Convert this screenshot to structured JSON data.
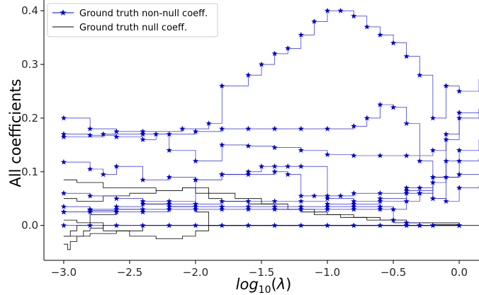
{
  "chart_data": {
    "type": "line",
    "xlabel": "log10(λ)",
    "ylabel": "All coefficients",
    "xlim": [
      -3.15,
      0.15
    ],
    "ylim": [
      -0.065,
      0.42
    ],
    "xticks": [
      -3.0,
      -2.5,
      -2.0,
      -1.5,
      -1.0,
      -0.5,
      0.0
    ],
    "xtick_labels": [
      "−3.0",
      "−2.5",
      "−2.0",
      "−1.5",
      "−1.0",
      "−0.5",
      "0.0"
    ],
    "yticks": [
      0.0,
      0.1,
      0.2,
      0.3,
      0.4
    ],
    "ytick_labels": [
      "0.0",
      "0.1",
      "0.2",
      "0.3",
      "0.4"
    ],
    "grid": false,
    "legend_position": "top-left",
    "legend": [
      {
        "label": "Ground truth non-null coeff.",
        "color": "#0000cc",
        "marker": "star"
      },
      {
        "label": "Ground truth null coeff.",
        "color": "#000000",
        "marker": "none"
      }
    ],
    "nonnull_color": "#0000cc",
    "null_color": "#000000",
    "nonnull_series": [
      {
        "x": [
          -3.0,
          -2.7,
          -2.4,
          -2.1,
          -1.9,
          -1.8,
          -1.6,
          -1.5,
          -1.4,
          -1.3,
          -1.2,
          -1.1,
          -1.0,
          -0.9,
          -0.8,
          -0.7,
          -0.6,
          -0.5,
          -0.4,
          -0.3,
          -0.2,
          -0.1,
          0.0,
          0.15
        ],
        "y": [
          0.165,
          0.17,
          0.175,
          0.18,
          0.19,
          0.26,
          0.28,
          0.3,
          0.32,
          0.33,
          0.355,
          0.38,
          0.4,
          0.4,
          0.39,
          0.37,
          0.355,
          0.34,
          0.315,
          0.28,
          0.2,
          0.26,
          0.25,
          0.273
        ]
      },
      {
        "x": [
          -3.0,
          -2.8,
          -2.6,
          -2.4,
          -2.2,
          -2.0,
          -1.8,
          -1.6,
          -1.4,
          -1.2,
          -1.0,
          -0.8,
          -0.7,
          -0.6,
          -0.5,
          -0.4,
          -0.3,
          -0.2,
          -0.1,
          0.0,
          0.15
        ],
        "y": [
          0.2,
          0.18,
          0.175,
          0.17,
          0.17,
          0.175,
          0.18,
          0.18,
          0.18,
          0.18,
          0.18,
          0.185,
          0.2,
          0.225,
          0.22,
          0.19,
          0.12,
          0.05,
          0.16,
          0.21,
          0.218
        ]
      },
      {
        "x": [
          -3.0,
          -2.8,
          -2.6,
          -2.4,
          -2.3,
          -2.2,
          -2.0,
          -1.8,
          -1.6,
          -1.4,
          -1.2,
          -1.0,
          -0.8,
          -0.6,
          -0.4,
          -0.2,
          -0.1,
          0.0,
          0.15
        ],
        "y": [
          0.17,
          0.168,
          0.165,
          0.16,
          0.17,
          0.14,
          0.12,
          0.15,
          0.148,
          0.145,
          0.14,
          0.132,
          0.13,
          0.13,
          0.13,
          0.14,
          0.17,
          0.2,
          0.215
        ]
      },
      {
        "x": [
          -3.0,
          -2.8,
          -2.7,
          -2.6,
          -2.4,
          -2.2,
          -2.0,
          -1.8,
          -1.6,
          -1.5,
          -1.4,
          -1.3,
          -1.2,
          -1.0,
          -0.8,
          -0.6,
          -0.4,
          -0.2,
          0.0,
          0.15
        ],
        "y": [
          0.118,
          0.105,
          0.095,
          0.11,
          0.085,
          0.09,
          0.085,
          0.095,
          0.1,
          0.11,
          0.11,
          0.11,
          0.11,
          0.05,
          0.045,
          0.05,
          0.065,
          0.09,
          0.12,
          0.125
        ]
      },
      {
        "x": [
          -3.0,
          -2.8,
          -2.6,
          -2.4,
          -2.2,
          -2.0,
          -1.8,
          -1.6,
          -1.4,
          -1.3,
          -1.2,
          -1.1,
          -1.0,
          -0.9,
          -0.8,
          -0.6,
          -0.4,
          -0.3,
          -0.2,
          -0.1,
          0.0,
          0.15
        ],
        "y": [
          0.06,
          0.055,
          0.05,
          0.045,
          0.045,
          0.085,
          0.095,
          0.095,
          0.1,
          0.095,
          0.055,
          0.055,
          0.055,
          0.055,
          0.06,
          0.06,
          0.06,
          0.07,
          0.08,
          0.09,
          0.095,
          0.095
        ]
      },
      {
        "x": [
          -3.0,
          -2.8,
          -2.6,
          -2.4,
          -2.2,
          -2.0,
          -1.8,
          -1.6,
          -1.4,
          -1.2,
          -1.0,
          -0.8,
          -0.6,
          -0.4,
          -0.3,
          -0.2,
          -0.1,
          0.0,
          0.15
        ],
        "y": [
          0.035,
          0.03,
          0.035,
          0.04,
          0.04,
          0.04,
          0.045,
          0.045,
          0.045,
          0.045,
          0.04,
          0.04,
          0.045,
          0.07,
          0.06,
          0.05,
          0.045,
          0.07,
          0.075
        ]
      },
      {
        "x": [
          -3.0,
          -2.8,
          -2.6,
          -2.4,
          -2.2,
          -2.0,
          -1.8,
          -1.6,
          -1.4,
          -1.2,
          -1.0,
          -0.8,
          -0.6,
          -0.5,
          -0.4,
          -0.3,
          -0.2,
          -0.1,
          0.0,
          0.15
        ],
        "y": [
          0.025,
          0.028,
          0.03,
          0.03,
          0.035,
          0.035,
          0.035,
          0.035,
          0.035,
          0.035,
          0.035,
          0.035,
          0.035,
          0.03,
          0.045,
          0.06,
          0.09,
          0.12,
          0.14,
          0.16
        ]
      },
      {
        "x": [
          -3.0,
          -2.8,
          -2.6,
          -2.4,
          -2.2,
          -2.0,
          -1.8,
          -1.6,
          -1.4,
          -1.2,
          -1.0,
          -0.8,
          -0.6,
          -0.5,
          -0.4,
          -0.3,
          -0.2,
          0.0
        ],
        "y": [
          0.025,
          0.025,
          0.025,
          0.025,
          0.03,
          0.03,
          0.03,
          0.03,
          0.03,
          0.03,
          0.03,
          0.03,
          0.03,
          0.01,
          0.005,
          0.0,
          0.0,
          0.0
        ]
      },
      {
        "x": [
          -3.0,
          -2.8,
          -2.6,
          -2.4,
          -2.2,
          -2.0,
          -1.8,
          -1.6,
          -1.4,
          -1.2,
          -1.0,
          -0.8,
          -0.6,
          -0.4,
          -0.3,
          -0.2,
          0.0
        ],
        "y": [
          0.0,
          0.0,
          0.0,
          0.0,
          0.0,
          0.0,
          0.0,
          0.0,
          0.0,
          0.0,
          0.0,
          0.0,
          0.0,
          0.0,
          0.0,
          0.0,
          0.0
        ]
      }
    ],
    "null_series": [
      {
        "x": [
          -3.0,
          -2.9,
          -2.7,
          -2.5,
          -2.3,
          -2.1,
          -2.0,
          -1.9,
          -1.8,
          -1.6,
          -1.4,
          -1.2,
          -1.0,
          -0.8,
          -0.6,
          -0.4,
          -0.2,
          0.0,
          0.15
        ],
        "y": [
          0.085,
          0.08,
          0.07,
          0.07,
          0.065,
          0.07,
          0.06,
          0.05,
          0.045,
          0.04,
          0.03,
          0.025,
          0.02,
          0.015,
          0.01,
          0.005,
          0.002,
          0.0,
          0.0
        ]
      },
      {
        "x": [
          -3.0,
          -2.9,
          -2.7,
          -2.5,
          -2.3,
          -2.1,
          -1.9,
          -1.7,
          -1.5,
          -1.3,
          -1.1,
          -0.9,
          -0.7,
          -0.5,
          0.0
        ],
        "y": [
          0.05,
          0.045,
          0.055,
          0.06,
          0.065,
          0.07,
          0.06,
          0.05,
          0.04,
          0.03,
          0.02,
          0.015,
          0.01,
          0.005,
          0.0
        ]
      },
      {
        "x": [
          -3.0,
          -2.95,
          -2.9,
          -2.8,
          -2.6,
          -2.4,
          -2.2,
          -2.0,
          -1.9,
          -1.8,
          -1.6,
          -1.4,
          -1.2,
          -1.0,
          0.0
        ],
        "y": [
          -0.02,
          -0.01,
          0.0,
          0.02,
          0.03,
          0.04,
          0.035,
          0.025,
          0.0,
          0.0,
          0.0,
          0.0,
          0.0,
          0.0,
          0.0
        ]
      },
      {
        "x": [
          -3.0,
          -2.97,
          -2.95,
          -2.9,
          -2.85,
          -2.8,
          -2.7,
          -2.6,
          -2.5,
          -2.3,
          -2.1,
          -1.9,
          -1.8,
          0.0
        ],
        "y": [
          -0.035,
          -0.045,
          -0.03,
          -0.02,
          -0.01,
          -0.005,
          0.0,
          0.0,
          0.0,
          0.0,
          0.0,
          0.0,
          0.0,
          0.0
        ]
      },
      {
        "x": [
          -3.0,
          -2.9,
          -2.7,
          -2.5,
          -2.3,
          -2.1,
          -2.0,
          -1.9,
          -1.8,
          0.0
        ],
        "y": [
          0.01,
          0.005,
          -0.01,
          -0.02,
          -0.025,
          -0.02,
          -0.01,
          0.0,
          0.0,
          0.0
        ]
      },
      {
        "x": [
          -3.0,
          -2.8,
          -2.6,
          -2.4,
          -2.2,
          -2.0,
          -1.9,
          0.0
        ],
        "y": [
          -0.02,
          -0.015,
          -0.01,
          0.0,
          0.0,
          0.0,
          0.0,
          0.0
        ]
      }
    ]
  }
}
